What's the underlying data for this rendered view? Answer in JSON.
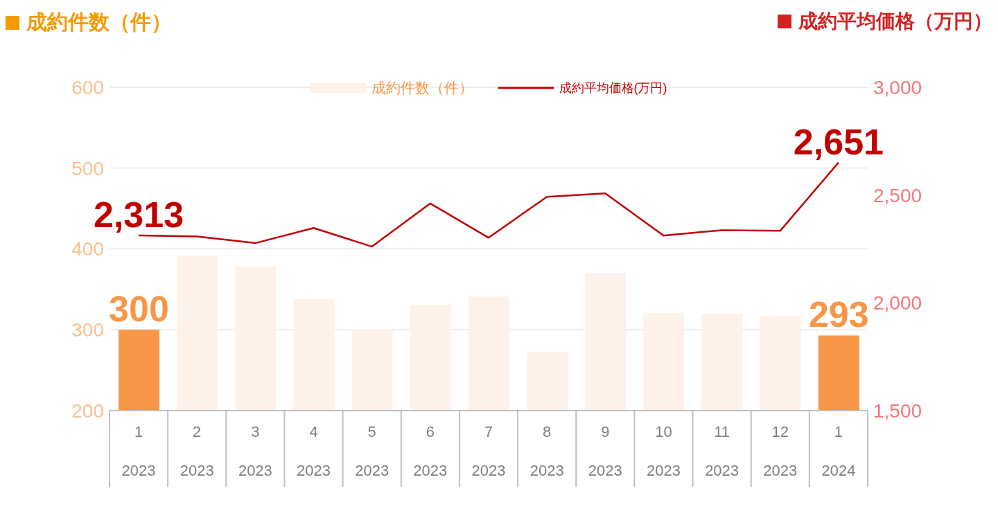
{
  "chart_data": {
    "type": "bar",
    "ylabel": "成約件数（件）",
    "y2label": "成約平均価格（万円）",
    "categories": [
      "1\n2023",
      "2\n2023",
      "3\n2023",
      "4\n2023",
      "5\n2023",
      "6\n2023",
      "7\n2023",
      "8\n2023",
      "9\n2023",
      "10\n2023",
      "11\n2023",
      "12\n2023",
      "1\n2024"
    ],
    "series": [
      {
        "name": "成約件数（件）",
        "color": "#f79646",
        "colors": [
          "#f79646",
          "#fdf1e9",
          "#fdf1e9",
          "#fdf1e9",
          "#fdf1e9",
          "#fdf1e9",
          "#fdf1e9",
          "#fdf1e9",
          "#fdf1e9",
          "#fdf1e9",
          "#fdf1e9",
          "#fdf1e9",
          "#f79646"
        ],
        "values": [
          300,
          392,
          378,
          338,
          300,
          331,
          341,
          272,
          370,
          321,
          320,
          317,
          293
        ],
        "value_labels": [
          "300",
          null,
          null,
          null,
          null,
          null,
          null,
          null,
          null,
          null,
          null,
          null,
          "293"
        ]
      },
      {
        "name": "成約平均価格(万円)",
        "type": "line",
        "axis": "y2",
        "color": "#c00000",
        "values": [
          2313,
          2308,
          2277,
          2347,
          2261,
          2461,
          2302,
          2492,
          2508,
          2312,
          2337,
          2334,
          2651
        ],
        "value_labels": [
          "2,313",
          null,
          null,
          null,
          null,
          null,
          null,
          null,
          null,
          null,
          null,
          null,
          "2,651"
        ]
      }
    ],
    "ylim": [
      200,
      600
    ],
    "yticks": [
      200,
      300,
      400,
      500,
      600
    ],
    "y2lim": [
      1500,
      3000
    ],
    "y2ticks": [
      {
        "value": 1500,
        "label": "1,500"
      },
      {
        "value": 2000,
        "label": "2,000"
      },
      {
        "value": 2500,
        "label": "2,500"
      },
      {
        "value": 3000,
        "label": "3,000"
      }
    ],
    "grid": "y",
    "legend": "top",
    "marker": "none",
    "line_style": "solid"
  }
}
